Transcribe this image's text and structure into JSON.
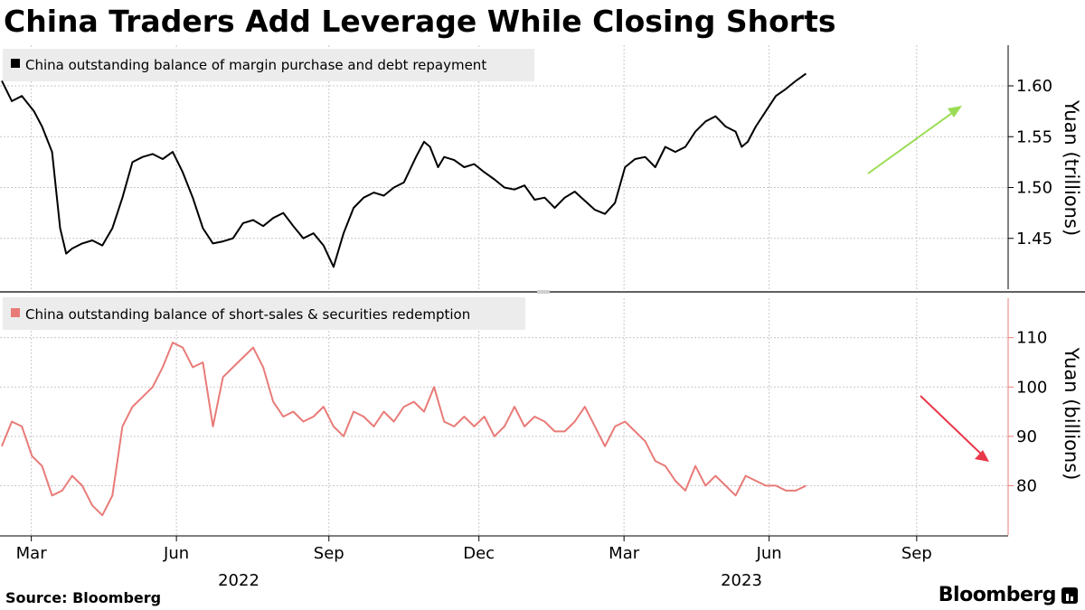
{
  "chart_data": [
    {
      "type": "line",
      "title": "China Traders Add Leverage While Closing Shorts",
      "legend": "China outstanding balance of margin purchase and debt repayment",
      "ylabel": "Yuan (trillions)",
      "yticks": [
        "1.60",
        "1.55",
        "1.50",
        "1.45"
      ],
      "ytick_values": [
        1.6,
        1.55,
        1.5,
        1.45
      ],
      "ylim": [
        1.4,
        1.64
      ],
      "color": "#000000",
      "trend_arrow_color": "#9bdc55",
      "x": [
        0.0,
        0.25,
        0.5,
        0.8,
        1.0,
        1.25,
        1.45,
        1.6,
        1.75,
        2.0,
        2.25,
        2.5,
        2.75,
        3.0,
        3.25,
        3.5,
        3.75,
        4.0,
        4.25,
        4.5,
        4.75,
        5.0,
        5.25,
        5.5,
        5.75,
        6.0,
        6.25,
        6.5,
        6.75,
        7.0,
        7.25,
        7.5,
        7.75,
        8.0,
        8.25,
        8.5,
        8.75,
        9.0,
        9.25,
        9.5,
        9.75,
        10.0,
        10.3,
        10.5,
        10.65,
        10.85,
        11.0,
        11.25,
        11.5,
        11.75,
        12.0,
        12.25,
        12.5,
        12.75,
        13.0,
        13.25,
        13.5,
        13.75,
        14.0,
        14.25,
        14.5,
        14.75,
        15.0,
        15.25,
        15.5,
        15.75,
        16.0,
        16.25,
        16.5,
        16.75,
        17.0,
        17.25,
        17.5,
        17.75,
        18.0,
        18.25,
        18.4,
        18.55,
        18.75,
        19.0,
        19.25,
        19.5,
        19.75,
        20.0
      ],
      "values": [
        1.605,
        1.585,
        1.59,
        1.575,
        1.56,
        1.535,
        1.46,
        1.435,
        1.44,
        1.445,
        1.448,
        1.443,
        1.46,
        1.49,
        1.525,
        1.53,
        1.533,
        1.528,
        1.535,
        1.515,
        1.49,
        1.46,
        1.445,
        1.447,
        1.45,
        1.465,
        1.468,
        1.462,
        1.47,
        1.475,
        1.462,
        1.45,
        1.455,
        1.443,
        1.422,
        1.455,
        1.48,
        1.49,
        1.495,
        1.492,
        1.5,
        1.505,
        1.53,
        1.545,
        1.54,
        1.52,
        1.53,
        1.527,
        1.52,
        1.523,
        1.515,
        1.508,
        1.5,
        1.498,
        1.502,
        1.488,
        1.49,
        1.48,
        1.49,
        1.496,
        1.487,
        1.478,
        1.474,
        1.485,
        1.52,
        1.528,
        1.53,
        1.52,
        1.54,
        1.535,
        1.54,
        1.555,
        1.565,
        1.57,
        1.56,
        1.555,
        1.54,
        1.545,
        1.56,
        1.575,
        1.59,
        1.597,
        1.605,
        1.612
      ]
    },
    {
      "type": "line",
      "legend": "China outstanding balance of short-sales & securities redemption",
      "ylabel": "Yuan (billions)",
      "yticks": [
        "110",
        "100",
        "90",
        "80"
      ],
      "ytick_values": [
        110,
        100,
        90,
        80
      ],
      "ylim": [
        70,
        118
      ],
      "color": "#e87b78",
      "trend_arrow_color": "#e8384a",
      "x": [
        0.0,
        0.25,
        0.5,
        0.75,
        1.0,
        1.25,
        1.5,
        1.75,
        2.0,
        2.25,
        2.5,
        2.75,
        3.0,
        3.25,
        3.5,
        3.75,
        4.0,
        4.25,
        4.5,
        4.75,
        5.0,
        5.25,
        5.5,
        5.75,
        6.0,
        6.25,
        6.5,
        6.75,
        7.0,
        7.25,
        7.5,
        7.75,
        8.0,
        8.25,
        8.5,
        8.75,
        9.0,
        9.25,
        9.5,
        9.75,
        10.0,
        10.25,
        10.5,
        10.75,
        11.0,
        11.25,
        11.5,
        11.75,
        12.0,
        12.25,
        12.5,
        12.75,
        13.0,
        13.25,
        13.5,
        13.75,
        14.0,
        14.25,
        14.5,
        14.75,
        15.0,
        15.25,
        15.5,
        15.75,
        16.0,
        16.25,
        16.5,
        16.75,
        17.0,
        17.25,
        17.5,
        17.75,
        18.0,
        18.25,
        18.5,
        18.75,
        19.0,
        19.25,
        19.5,
        19.75,
        20.0
      ],
      "values": [
        88,
        93,
        92,
        86,
        84,
        78,
        79,
        82,
        80,
        76,
        74,
        78,
        92,
        96,
        98,
        100,
        104,
        109,
        108,
        104,
        105,
        92,
        102,
        104,
        106,
        108,
        104,
        97,
        94,
        95,
        93,
        94,
        96,
        92,
        90,
        95,
        94,
        92,
        95,
        93,
        96,
        97,
        95,
        100,
        93,
        92,
        94,
        92,
        94,
        90,
        92,
        96,
        92,
        94,
        93,
        91,
        91,
        93,
        96,
        92,
        88,
        92,
        93,
        91,
        89,
        85,
        84,
        81,
        79,
        84,
        80,
        82,
        80,
        78,
        82,
        81,
        80,
        80,
        79,
        79,
        80
      ],
      "series_x_end": 16.35
    }
  ],
  "x_axis": {
    "month_labels": [
      "Mar",
      "Jun",
      "Sep",
      "Dec",
      "Mar",
      "Jun",
      "Sep"
    ],
    "year_labels": [
      "2022",
      "2023"
    ]
  },
  "footer": {
    "source": "Source: Bloomberg",
    "brand": "Bloomberg"
  }
}
